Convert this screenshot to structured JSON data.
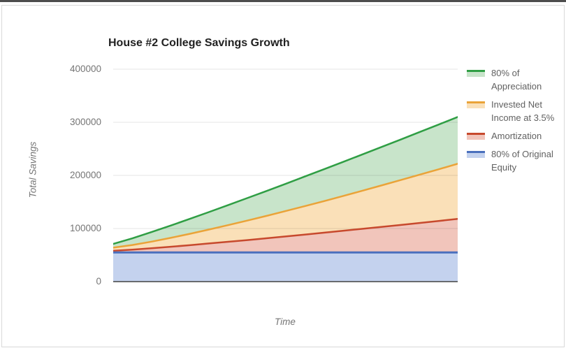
{
  "window": {
    "top_edge_color": "#4d4d4d",
    "frame_border_color": "#d9d9d9",
    "background": "#ffffff"
  },
  "chart_data": {
    "type": "area",
    "title": "House #2 College Savings Growth",
    "xlabel": "Time",
    "ylabel": "Total Savings",
    "ylim": [
      0,
      400000
    ],
    "yticks": [
      0,
      100000,
      200000,
      300000,
      400000
    ],
    "ytick_labels": [
      "0",
      "100000",
      "200000",
      "300000",
      "400000"
    ],
    "x": [
      0,
      1,
      2,
      3,
      4,
      5,
      6,
      7,
      8,
      9,
      10,
      11,
      12,
      13,
      14,
      15,
      16,
      17,
      18
    ],
    "grid": true,
    "stacked": false,
    "legend_position": "right",
    "palette": {
      "grid_line": "#e3e3e3",
      "grid_overlay": "rgba(0,0,0,0.10)",
      "axis_line": "#424242",
      "title_color": "#212121",
      "tick_color": "#757575",
      "axis_title_color": "#757575",
      "legend_text_color": "#616161"
    },
    "series": [
      {
        "name": "80% of Appreciation",
        "color": "#2f9e44",
        "fill": "#c8e4ca",
        "line_width": 2.5,
        "values": [
          71000,
          81500,
          93300,
          105500,
          118100,
          130900,
          144000,
          157200,
          170500,
          184000,
          197700,
          211400,
          225200,
          239200,
          253200,
          267300,
          281500,
          295700,
          310000
        ]
      },
      {
        "name": "Invested Net Income at 3.5%",
        "color": "#eaa338",
        "fill": "#fae0b8",
        "line_width": 2.5,
        "values": [
          64000,
          68900,
          75300,
          82400,
          90000,
          98000,
          106300,
          114900,
          123700,
          132800,
          142000,
          151500,
          161100,
          170900,
          180900,
          191000,
          201200,
          211500,
          222000
        ]
      },
      {
        "name": "Amortization",
        "color": "#c7492d",
        "fill": "#f1c5bb",
        "line_width": 2.5,
        "values": [
          58000,
          60200,
          62800,
          65600,
          68600,
          71800,
          75000,
          78200,
          81600,
          85000,
          88500,
          92100,
          95600,
          99300,
          102900,
          106600,
          110400,
          114200,
          118000
        ]
      },
      {
        "name": "80% of Original Equity",
        "color": "#4a6fbd",
        "fill": "#c4d2ee",
        "line_width": 3,
        "values": [
          55000,
          55000,
          55000,
          55000,
          55000,
          55000,
          55000,
          55000,
          55000,
          55000,
          55000,
          55000,
          55000,
          55000,
          55000,
          55000,
          55000,
          55000,
          55000
        ]
      }
    ]
  }
}
